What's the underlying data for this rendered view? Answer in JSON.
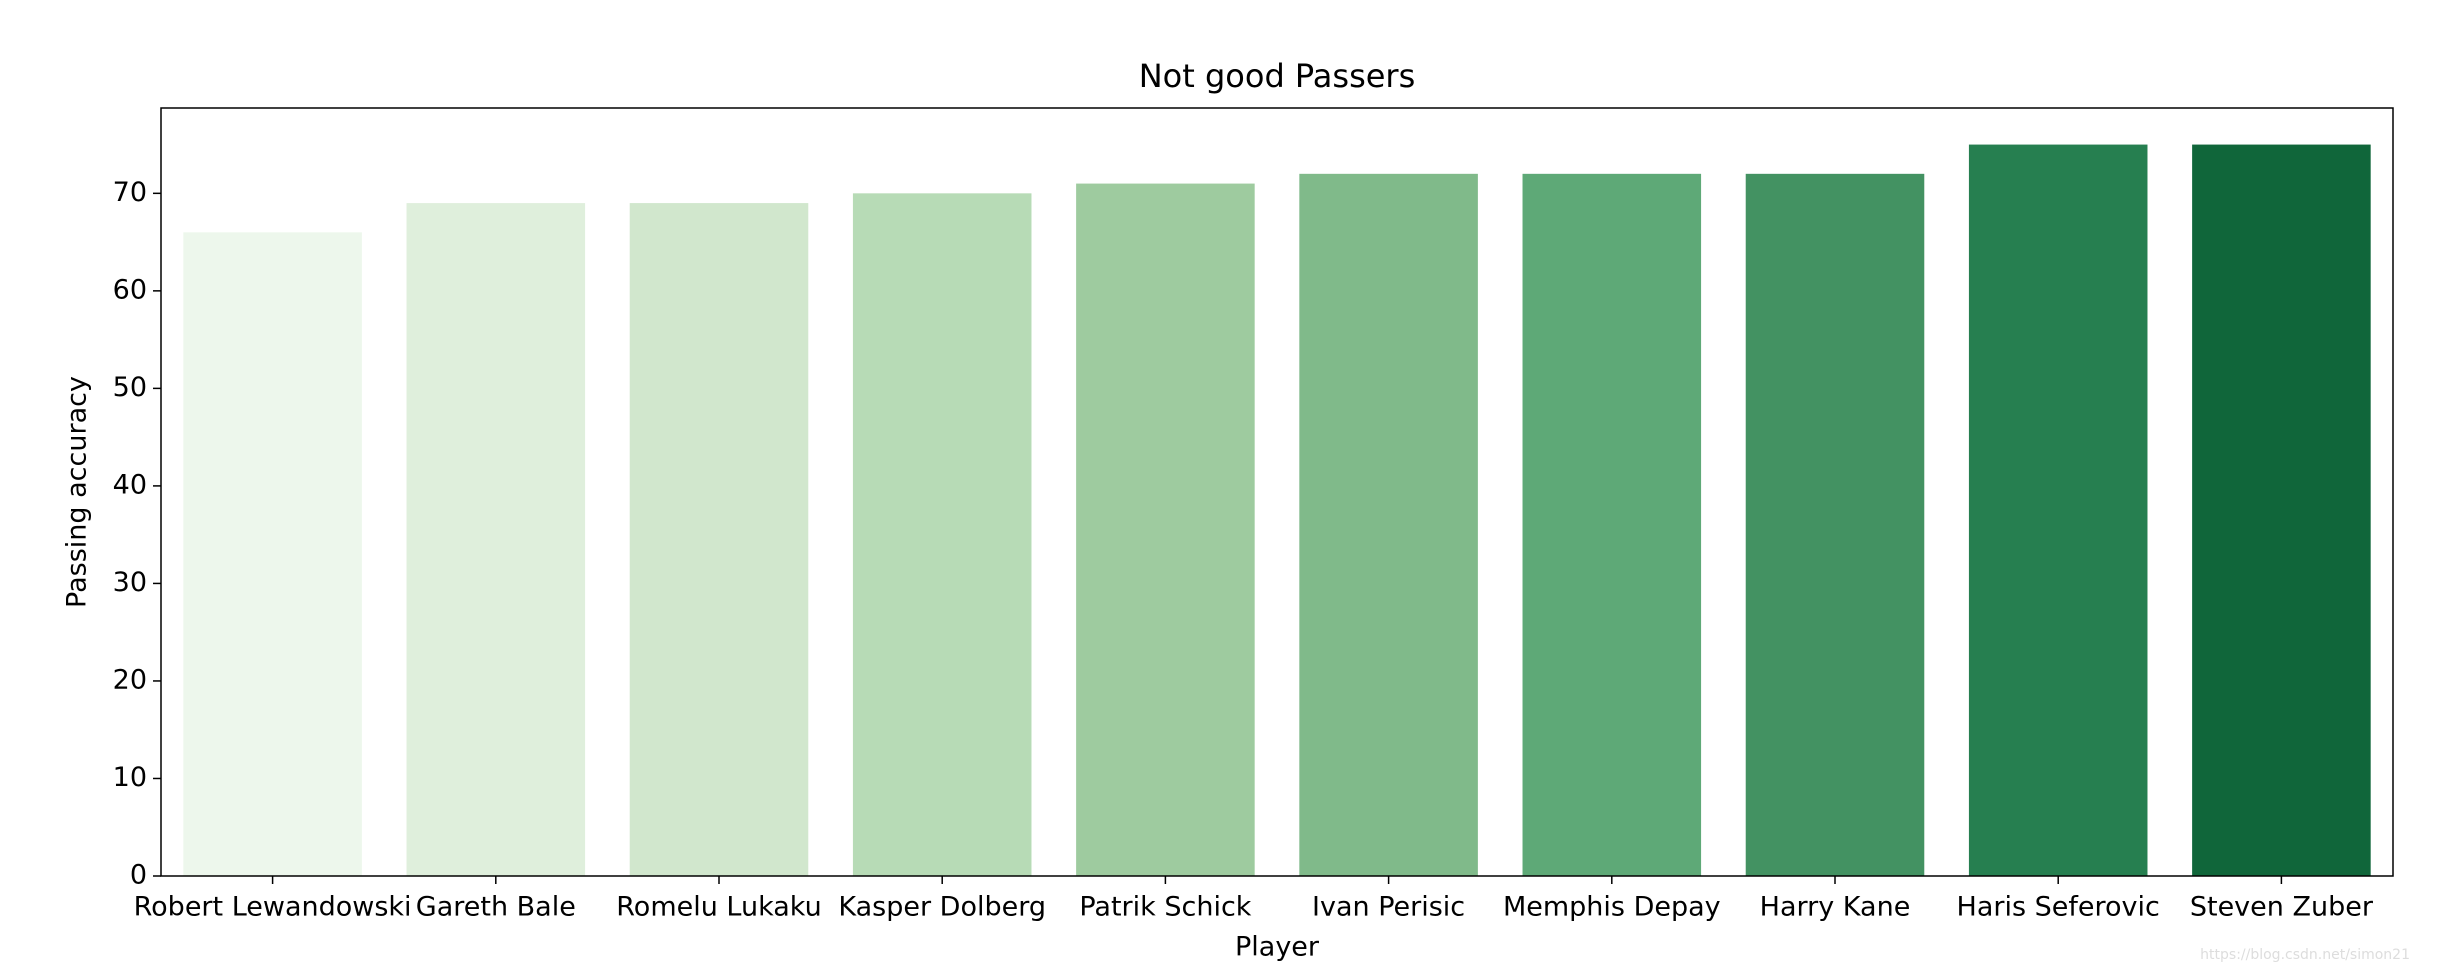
{
  "chart_data": {
    "type": "bar",
    "title": "Not good Passers",
    "x_label": "Player",
    "y_label": "Passing accuracy",
    "categories": [
      "Robert Lewandowski",
      "Gareth Bale",
      "Romelu Lukaku",
      "Kasper Dolberg",
      "Patrik Schick",
      "Ivan Perisic",
      "Memphis Depay",
      "Harry Kane",
      "Haris Seferovic",
      "Steven Zuber"
    ],
    "values": [
      66,
      69,
      69,
      70,
      71,
      72,
      72,
      72,
      75,
      75
    ],
    "colors": [
      "#edf7ec",
      "#dfefdc",
      "#d1e7cd",
      "#b7dbb6",
      "#9ecb9f",
      "#80ba8a",
      "#5ea977",
      "#439262",
      "#267f50",
      "#10663a"
    ],
    "ylim": [
      0,
      78.75
    ],
    "yticks": [
      0,
      10,
      20,
      30,
      40,
      50,
      60,
      70
    ],
    "grid": false,
    "watermark": "https://blog.csdn.net/simon21"
  }
}
